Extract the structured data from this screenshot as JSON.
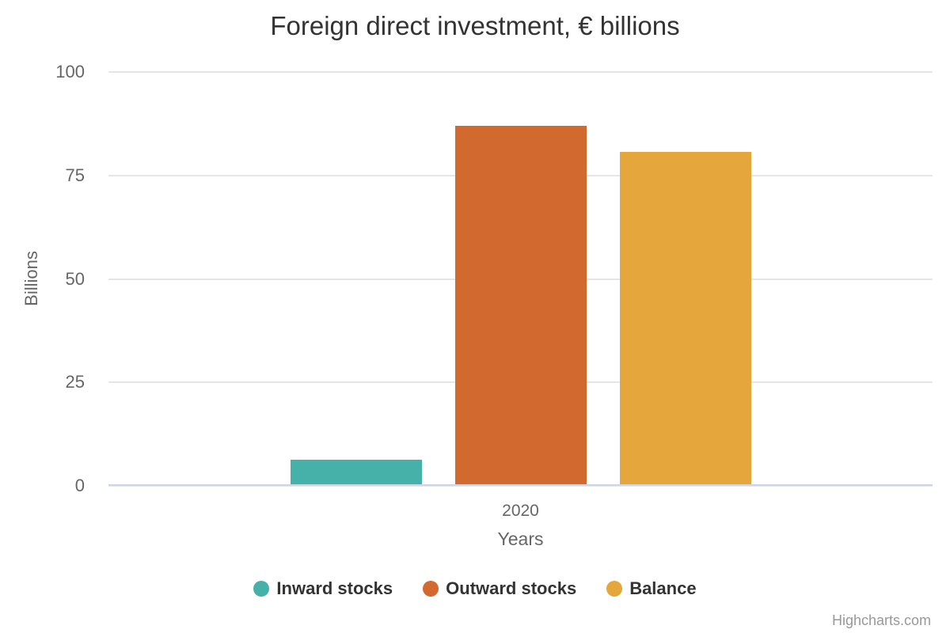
{
  "chart_data": {
    "type": "bar",
    "title": "Foreign direct investment, € billions",
    "xlabel": "Years",
    "ylabel": "Billions",
    "categories": [
      "2020"
    ],
    "series": [
      {
        "name": "Inward stocks",
        "color": "#45b1a8",
        "values": [
          6.3
        ]
      },
      {
        "name": "Outward stocks",
        "color": "#d2692e",
        "values": [
          87.0
        ]
      },
      {
        "name": "Balance",
        "color": "#e5a63b",
        "values": [
          80.7
        ]
      }
    ],
    "ylim": [
      0,
      100
    ],
    "yticks": [
      0,
      25,
      50,
      75,
      100
    ],
    "grid": true,
    "legend_position": "bottom"
  },
  "palette": {
    "grid_line": "#e6e6e6",
    "axis_line": "#ccd6eb",
    "title_text": "#333333",
    "label_text": "#666666",
    "legend_text": "#333333",
    "credits_text": "#999999"
  },
  "credits": {
    "label": "Highcharts.com"
  }
}
